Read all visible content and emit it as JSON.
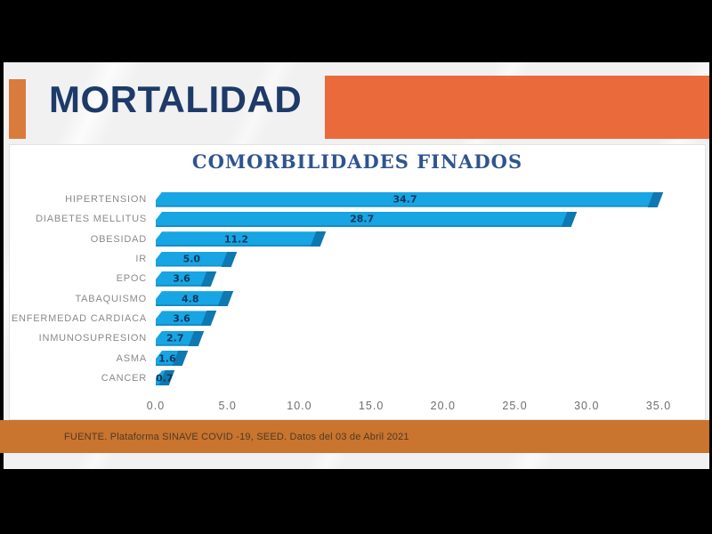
{
  "slide": {
    "title": "MORTALIDAD",
    "footer_text": "FUENTE. Plataforma SINAVE COVID -19, SEED. Datos del 03 de Abril 2021"
  },
  "chart_data": {
    "type": "bar",
    "orientation": "horizontal",
    "title": "COMORBILIDADES FINADOS",
    "categories": [
      "HIPERTENSION",
      "DIABETES MELLITUS",
      "OBESIDAD",
      "IR",
      "EPOC",
      "TABAQUISMO",
      "ENFERMEDAD CARDIACA",
      "INMUNOSUPRESION",
      "ASMA",
      "CANCER"
    ],
    "values": [
      34.7,
      28.7,
      11.2,
      5.0,
      3.6,
      4.8,
      3.6,
      2.7,
      1.6,
      0.7
    ],
    "value_labels": [
      "34.7",
      "28.7",
      "11.2",
      "5.0",
      "3.6",
      "4.8",
      "3.6",
      "2.7",
      "1.6",
      "0.7"
    ],
    "x_ticks": [
      "0.0",
      "5.0",
      "10.0",
      "15.0",
      "20.0",
      "25.0",
      "30.0",
      "35.0"
    ],
    "x_tick_values": [
      0,
      5,
      10,
      15,
      20,
      25,
      30,
      35
    ],
    "xlim": [
      0,
      35
    ],
    "xlabel": "",
    "ylabel": "",
    "grid": false,
    "legend": false,
    "bar_style": "3d-bevel"
  },
  "colors": {
    "navy": "#1D3A68",
    "chart-title": "#2F5490",
    "bar": "#17A5E3",
    "bar-side": "#0E78B0",
    "value-text": "#14365A",
    "orange-band": "#EB6A3C",
    "orange-square": "#D97B3D",
    "orange-footer": "#C9742F",
    "slide-bg": "#F1F1F2",
    "category-text": "#8A8A8A",
    "tick-text": "#6E6E6E",
    "footer-text": "#4E3A23"
  }
}
